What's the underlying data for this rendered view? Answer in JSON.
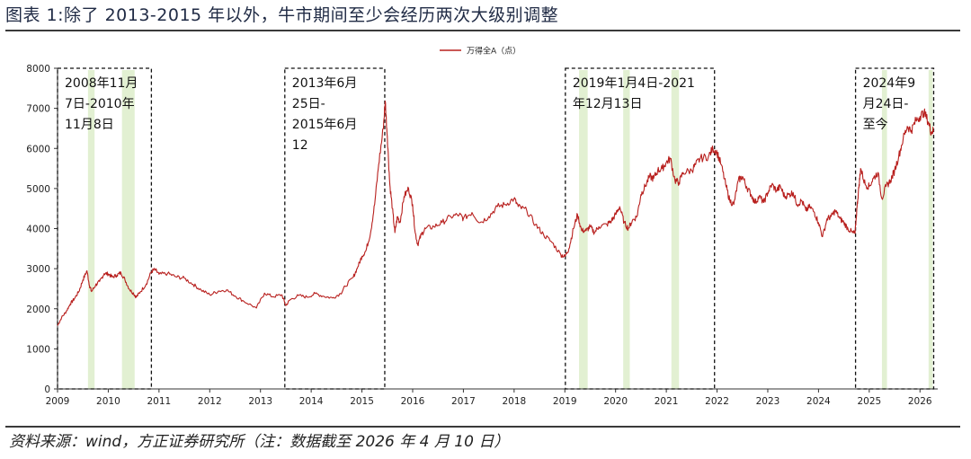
{
  "figure": {
    "title": "图表 1:除了 2013-2015 年以外，牛市期间至少会经历两次大级别调整",
    "source": "资料来源：wind，方正证券研究所（注：数据截至 2026 年 4 月 10 日）"
  },
  "chart_data": {
    "type": "line",
    "legend_position": "top-center",
    "ylim": [
      0,
      8000
    ],
    "yticks": [
      0,
      1000,
      2000,
      3000,
      4000,
      5000,
      6000,
      7000,
      8000
    ],
    "xlim": [
      2009.0,
      2026.35
    ],
    "xticks": [
      2009,
      2010,
      2011,
      2012,
      2013,
      2014,
      2015,
      2016,
      2017,
      2018,
      2019,
      2020,
      2021,
      2022,
      2023,
      2024,
      2025,
      2026
    ],
    "grid": false,
    "colors": {
      "line": "#b8201e",
      "highlight": "#e2f0d2",
      "box_border": "#111111"
    },
    "series": [
      {
        "name": "万得全A（点）",
        "points": [
          [
            2009.0,
            1580
          ],
          [
            2009.08,
            1780
          ],
          [
            2009.17,
            1930
          ],
          [
            2009.25,
            2120
          ],
          [
            2009.33,
            2250
          ],
          [
            2009.42,
            2430
          ],
          [
            2009.5,
            2720
          ],
          [
            2009.58,
            2950
          ],
          [
            2009.63,
            2580
          ],
          [
            2009.67,
            2430
          ],
          [
            2009.75,
            2590
          ],
          [
            2009.83,
            2680
          ],
          [
            2009.92,
            2880
          ],
          [
            2010.0,
            2870
          ],
          [
            2010.08,
            2790
          ],
          [
            2010.17,
            2840
          ],
          [
            2010.25,
            2900
          ],
          [
            2010.33,
            2720
          ],
          [
            2010.42,
            2480
          ],
          [
            2010.5,
            2380
          ],
          [
            2010.55,
            2290
          ],
          [
            2010.63,
            2420
          ],
          [
            2010.75,
            2620
          ],
          [
            2010.85,
            2930
          ],
          [
            2010.92,
            2980
          ],
          [
            2011.0,
            2860
          ],
          [
            2011.17,
            2880
          ],
          [
            2011.33,
            2800
          ],
          [
            2011.5,
            2760
          ],
          [
            2011.67,
            2610
          ],
          [
            2011.83,
            2470
          ],
          [
            2012.0,
            2350
          ],
          [
            2012.17,
            2440
          ],
          [
            2012.33,
            2470
          ],
          [
            2012.5,
            2320
          ],
          [
            2012.67,
            2190
          ],
          [
            2012.92,
            2020
          ],
          [
            2013.08,
            2390
          ],
          [
            2013.25,
            2300
          ],
          [
            2013.42,
            2350
          ],
          [
            2013.5,
            2080
          ],
          [
            2013.58,
            2220
          ],
          [
            2013.75,
            2330
          ],
          [
            2013.92,
            2290
          ],
          [
            2014.08,
            2380
          ],
          [
            2014.25,
            2310
          ],
          [
            2014.42,
            2270
          ],
          [
            2014.58,
            2380
          ],
          [
            2014.67,
            2560
          ],
          [
            2014.83,
            2790
          ],
          [
            2014.92,
            3050
          ],
          [
            2015.0,
            3310
          ],
          [
            2015.08,
            3450
          ],
          [
            2015.17,
            3900
          ],
          [
            2015.25,
            4600
          ],
          [
            2015.33,
            5600
          ],
          [
            2015.42,
            6500
          ],
          [
            2015.46,
            7180
          ],
          [
            2015.5,
            6300
          ],
          [
            2015.55,
            5100
          ],
          [
            2015.6,
            4500
          ],
          [
            2015.65,
            3900
          ],
          [
            2015.7,
            4300
          ],
          [
            2015.75,
            4150
          ],
          [
            2015.83,
            4800
          ],
          [
            2015.92,
            5000
          ],
          [
            2016.0,
            4600
          ],
          [
            2016.05,
            3900
          ],
          [
            2016.1,
            3600
          ],
          [
            2016.17,
            3850
          ],
          [
            2016.25,
            4000
          ],
          [
            2016.42,
            4050
          ],
          [
            2016.58,
            4150
          ],
          [
            2016.75,
            4300
          ],
          [
            2016.92,
            4350
          ],
          [
            2017.0,
            4250
          ],
          [
            2017.17,
            4400
          ],
          [
            2017.33,
            4150
          ],
          [
            2017.5,
            4300
          ],
          [
            2017.67,
            4550
          ],
          [
            2017.83,
            4600
          ],
          [
            2018.0,
            4750
          ],
          [
            2018.08,
            4550
          ],
          [
            2018.25,
            4450
          ],
          [
            2018.42,
            4100
          ],
          [
            2018.58,
            3850
          ],
          [
            2018.75,
            3650
          ],
          [
            2018.92,
            3350
          ],
          [
            2019.0,
            3300
          ],
          [
            2019.08,
            3500
          ],
          [
            2019.17,
            4000
          ],
          [
            2019.25,
            4350
          ],
          [
            2019.33,
            3950
          ],
          [
            2019.42,
            3950
          ],
          [
            2019.5,
            4050
          ],
          [
            2019.58,
            3900
          ],
          [
            2019.67,
            4050
          ],
          [
            2019.83,
            4100
          ],
          [
            2019.92,
            4200
          ],
          [
            2020.0,
            4350
          ],
          [
            2020.08,
            4550
          ],
          [
            2020.17,
            4150
          ],
          [
            2020.25,
            4000
          ],
          [
            2020.33,
            4200
          ],
          [
            2020.42,
            4300
          ],
          [
            2020.5,
            4850
          ],
          [
            2020.58,
            5050
          ],
          [
            2020.67,
            5300
          ],
          [
            2020.75,
            5250
          ],
          [
            2020.83,
            5450
          ],
          [
            2020.92,
            5500
          ],
          [
            2021.0,
            5650
          ],
          [
            2021.08,
            5750
          ],
          [
            2021.17,
            5200
          ],
          [
            2021.25,
            5150
          ],
          [
            2021.33,
            5400
          ],
          [
            2021.5,
            5450
          ],
          [
            2021.58,
            5600
          ],
          [
            2021.67,
            5750
          ],
          [
            2021.83,
            5800
          ],
          [
            2021.92,
            6000
          ],
          [
            2022.0,
            5900
          ],
          [
            2022.08,
            5600
          ],
          [
            2022.17,
            5100
          ],
          [
            2022.25,
            4700
          ],
          [
            2022.33,
            4600
          ],
          [
            2022.42,
            5200
          ],
          [
            2022.5,
            5300
          ],
          [
            2022.58,
            5050
          ],
          [
            2022.67,
            4850
          ],
          [
            2022.75,
            4650
          ],
          [
            2022.83,
            4800
          ],
          [
            2022.92,
            4650
          ],
          [
            2023.0,
            4900
          ],
          [
            2023.08,
            5100
          ],
          [
            2023.17,
            4950
          ],
          [
            2023.25,
            5050
          ],
          [
            2023.33,
            4800
          ],
          [
            2023.42,
            4850
          ],
          [
            2023.5,
            4900
          ],
          [
            2023.58,
            4600
          ],
          [
            2023.67,
            4700
          ],
          [
            2023.75,
            4450
          ],
          [
            2023.83,
            4550
          ],
          [
            2023.92,
            4400
          ],
          [
            2024.0,
            4150
          ],
          [
            2024.08,
            3800
          ],
          [
            2024.17,
            4250
          ],
          [
            2024.25,
            4300
          ],
          [
            2024.33,
            4450
          ],
          [
            2024.42,
            4250
          ],
          [
            2024.5,
            4150
          ],
          [
            2024.58,
            4000
          ],
          [
            2024.67,
            3900
          ],
          [
            2024.72,
            3880
          ],
          [
            2024.76,
            4550
          ],
          [
            2024.8,
            5100
          ],
          [
            2024.83,
            5500
          ],
          [
            2024.92,
            5100
          ],
          [
            2025.0,
            5050
          ],
          [
            2025.08,
            5250
          ],
          [
            2025.17,
            5400
          ],
          [
            2025.25,
            4750
          ],
          [
            2025.33,
            5050
          ],
          [
            2025.42,
            5200
          ],
          [
            2025.5,
            5450
          ],
          [
            2025.58,
            5800
          ],
          [
            2025.67,
            6250
          ],
          [
            2025.75,
            6550
          ],
          [
            2025.83,
            6450
          ],
          [
            2025.92,
            6700
          ],
          [
            2026.0,
            6800
          ],
          [
            2026.08,
            6900
          ],
          [
            2026.17,
            6650
          ],
          [
            2026.22,
            6400
          ],
          [
            2026.27,
            6450
          ]
        ]
      }
    ],
    "highlight_bands": [
      [
        2009.6,
        2009.73
      ],
      [
        2010.27,
        2010.52
      ],
      [
        2019.28,
        2019.45
      ],
      [
        2020.15,
        2020.28
      ],
      [
        2021.1,
        2021.25
      ],
      [
        2025.25,
        2025.35
      ],
      [
        2026.17,
        2026.25
      ]
    ],
    "annotation_boxes": [
      {
        "x0": 2009.0,
        "x1": 2010.85,
        "label": "2008年11月7日-2010年11月8日",
        "lines": [
          "2008年11月",
          "7日-2010年",
          "11月8日"
        ]
      },
      {
        "x0": 2013.48,
        "x1": 2015.45,
        "label": "2013年6月25日-2015年6月12日",
        "lines": [
          "2013年6月",
          "25日-",
          "2015年6月",
          "12"
        ]
      },
      {
        "x0": 2019.01,
        "x1": 2021.95,
        "label": "2019年1月4日-2021年12月13日",
        "lines": [
          "2019年1月4日-2021",
          "年12月13日"
        ]
      },
      {
        "x0": 2024.73,
        "x1": 2026.27,
        "label": "2024年9月24日-至今",
        "lines": [
          "2024年9",
          "月24日-",
          "至今"
        ]
      }
    ]
  }
}
